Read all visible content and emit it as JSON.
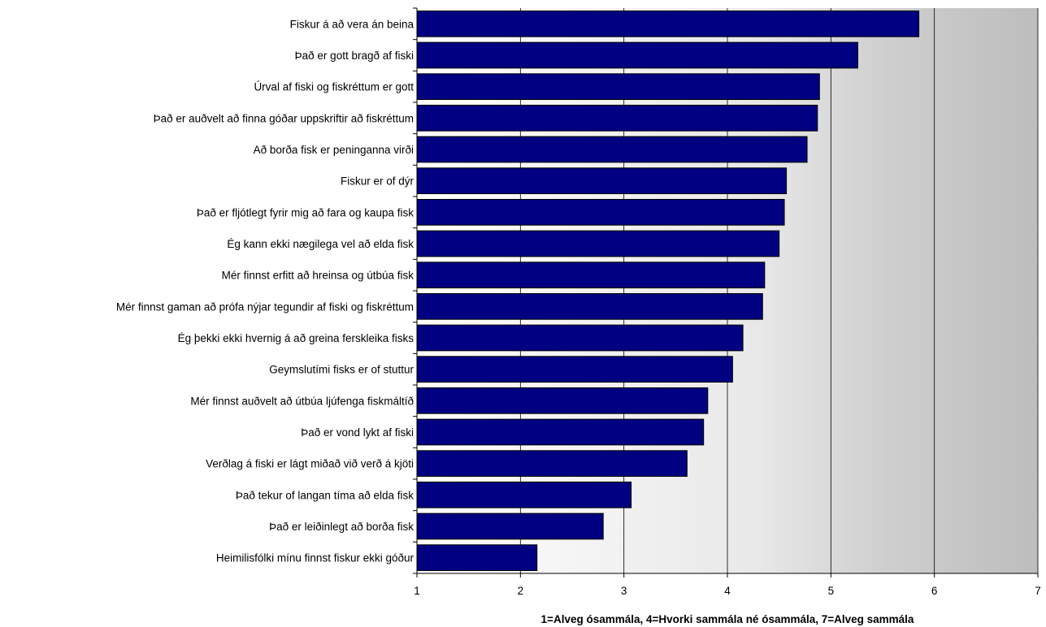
{
  "chart_data": {
    "type": "bar",
    "orientation": "horizontal",
    "categories": [
      "Fiskur á að vera án beina",
      "Það er gott bragð af fiski",
      "Úrval af fiski og fiskréttum er gott",
      "Það er auðvelt að finna góðar uppskriftir að fiskréttum",
      "Að borða fisk er peninganna virði",
      "Fiskur er of dýr",
      "Það er fljótlegt fyrir mig að fara og kaupa fisk",
      "Ég kann ekki nægilega vel að elda fisk",
      "Mér finnst erfitt að hreinsa og útbúa fisk",
      "Mér finnst gaman að prófa nýjar tegundir af fiski og fiskréttum",
      "Ég þekki ekki hvernig á að greina ferskleika fisks",
      "Geymslutími fisks er of stuttur",
      "Mér finnst auðvelt að útbúa ljúfenga fiskmáltíð",
      "Það er vond lykt af fiski",
      "Verðlag á fiski er lágt miðað við verð á kjöti",
      "Það tekur of langan tíma að elda fisk",
      "Það er leiðinlegt að borða fisk",
      "Heimilisfólki mínu finnst fiskur ekki góður"
    ],
    "values": [
      5.85,
      5.26,
      4.89,
      4.87,
      4.77,
      4.57,
      4.55,
      4.5,
      4.36,
      4.34,
      4.15,
      4.05,
      3.81,
      3.77,
      3.61,
      3.07,
      2.8,
      2.16
    ],
    "xlim": [
      1,
      7
    ],
    "xticks": [
      "1",
      "2",
      "3",
      "4",
      "5",
      "6",
      "7"
    ],
    "xlabel": "1=Alveg ósammála, 4=Hvorki sammála né ósammála, 7=Alveg sammála",
    "title": "",
    "grid": "vertical",
    "colors": {
      "bar": "#000080",
      "bar_border": "#000000",
      "grid": "#000000"
    }
  }
}
